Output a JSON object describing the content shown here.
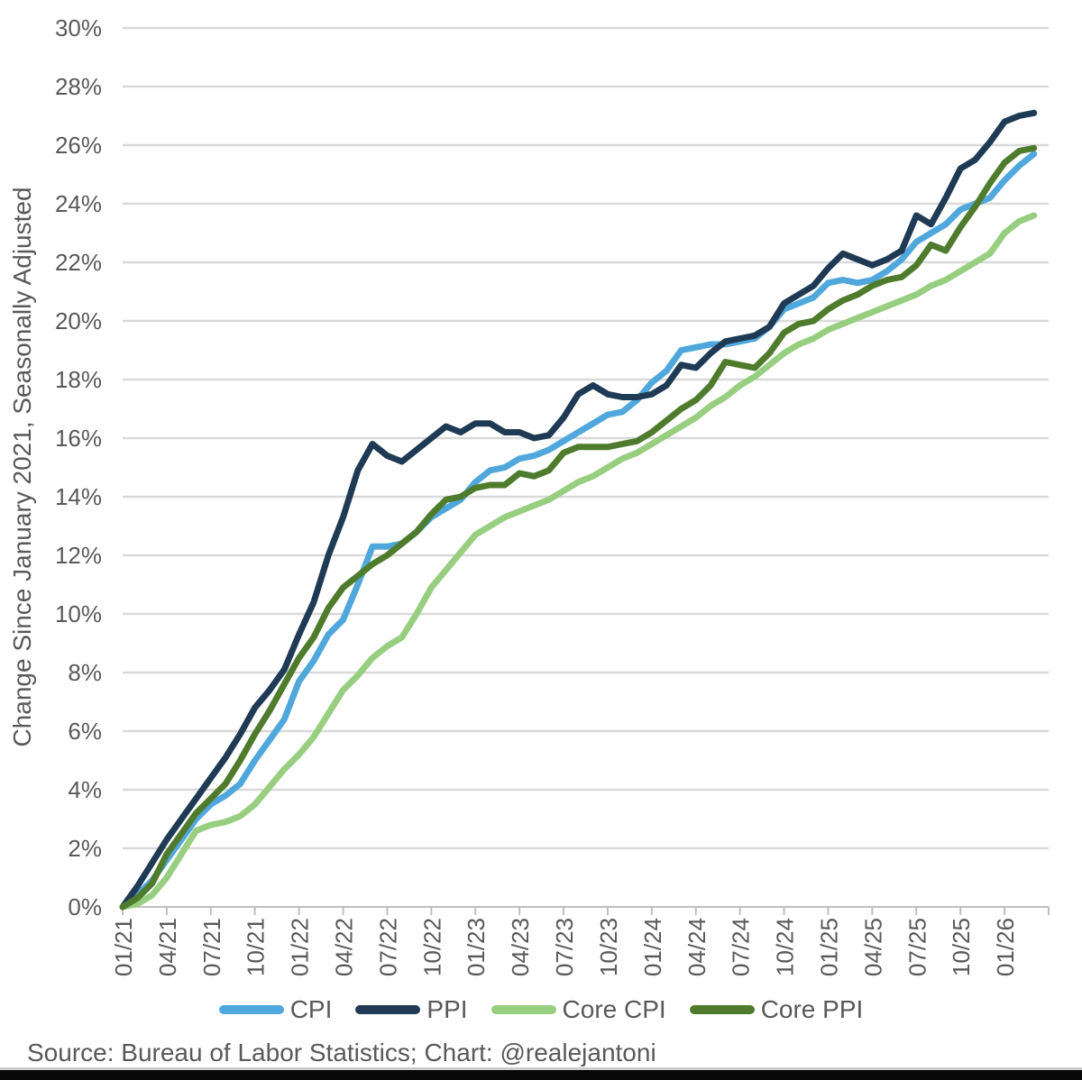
{
  "chart_data": {
    "type": "line",
    "title": "",
    "ylabel": "Change Since January 2021, Seasonally Adjusted",
    "xlabel": "",
    "ylim": [
      0,
      30
    ],
    "y_tick_step_pct": 2,
    "y_tick_labels": [
      "0%",
      "2%",
      "4%",
      "6%",
      "8%",
      "10%",
      "12%",
      "14%",
      "16%",
      "18%",
      "20%",
      "22%",
      "24%",
      "26%",
      "28%",
      "30%"
    ],
    "x_tick_labels": [
      "01/21",
      "04/21",
      "07/21",
      "10/21",
      "01/22",
      "04/22",
      "07/22",
      "10/22",
      "01/23",
      "04/23",
      "07/23",
      "10/23",
      "01/24",
      "04/24",
      "07/24",
      "10/24",
      "01/25",
      "04/25",
      "07/25",
      "10/25",
      "01/26"
    ],
    "x_unit": "month",
    "x_months_per_tick": 3,
    "grid": true,
    "legend_position": "bottom",
    "colors": {
      "grid": "#d9d9d9",
      "axis": "#bfbfbf",
      "text": "#595959"
    },
    "series": [
      {
        "name": "CPI",
        "color": "#4fa7dc",
        "values": [
          0.0,
          0.4,
          0.9,
          1.6,
          2.3,
          3.0,
          3.5,
          3.8,
          4.2,
          5.0,
          5.7,
          6.4,
          7.7,
          8.4,
          9.3,
          9.8,
          11.0,
          12.3,
          12.3,
          12.4,
          12.8,
          13.3,
          13.6,
          13.9,
          14.5,
          14.9,
          15.0,
          15.3,
          15.4,
          15.6,
          15.9,
          16.2,
          16.5,
          16.8,
          16.9,
          17.3,
          17.9,
          18.3,
          19.0,
          19.1,
          19.2,
          19.2,
          19.3,
          19.4,
          19.8,
          20.4,
          20.6,
          20.8,
          21.3,
          21.4,
          21.3,
          21.4,
          21.7,
          22.1,
          22.7,
          23.0,
          23.3,
          23.8,
          24.0,
          24.2,
          24.8,
          25.3,
          25.7
        ]
      },
      {
        "name": "PPI",
        "color": "#1f3a54",
        "values": [
          0.0,
          0.7,
          1.5,
          2.3,
          3.0,
          3.7,
          4.4,
          5.1,
          5.9,
          6.8,
          7.4,
          8.1,
          9.3,
          10.4,
          12.0,
          13.3,
          14.9,
          15.8,
          15.4,
          15.2,
          15.6,
          16.0,
          16.4,
          16.2,
          16.5,
          16.5,
          16.2,
          16.2,
          16.0,
          16.1,
          16.7,
          17.5,
          17.8,
          17.5,
          17.4,
          17.4,
          17.5,
          17.8,
          18.5,
          18.4,
          18.9,
          19.3,
          19.4,
          19.5,
          19.8,
          20.6,
          20.9,
          21.2,
          21.8,
          22.3,
          22.1,
          21.9,
          22.1,
          22.4,
          23.6,
          23.3,
          24.2,
          25.2,
          25.5,
          26.1,
          26.8,
          27.0,
          27.1
        ]
      },
      {
        "name": "Core CPI",
        "color": "#97ce7f",
        "values": [
          0.0,
          0.1,
          0.4,
          1.0,
          1.8,
          2.6,
          2.8,
          2.9,
          3.1,
          3.5,
          4.1,
          4.7,
          5.2,
          5.8,
          6.6,
          7.4,
          7.9,
          8.5,
          8.9,
          9.2,
          10.0,
          10.9,
          11.5,
          12.1,
          12.7,
          13.0,
          13.3,
          13.5,
          13.7,
          13.9,
          14.2,
          14.5,
          14.7,
          15.0,
          15.3,
          15.5,
          15.8,
          16.1,
          16.4,
          16.7,
          17.1,
          17.4,
          17.8,
          18.1,
          18.5,
          18.9,
          19.2,
          19.4,
          19.7,
          19.9,
          20.1,
          20.3,
          20.5,
          20.7,
          20.9,
          21.2,
          21.4,
          21.7,
          22.0,
          22.3,
          23.0,
          23.4,
          23.6
        ]
      },
      {
        "name": "Core PPI",
        "color": "#4e7b2c",
        "values": [
          0.0,
          0.3,
          0.8,
          1.8,
          2.5,
          3.2,
          3.7,
          4.2,
          5.0,
          5.9,
          6.7,
          7.6,
          8.5,
          9.2,
          10.2,
          10.9,
          11.3,
          11.7,
          12.0,
          12.4,
          12.8,
          13.4,
          13.9,
          14.0,
          14.3,
          14.4,
          14.4,
          14.8,
          14.7,
          14.9,
          15.5,
          15.7,
          15.7,
          15.7,
          15.8,
          15.9,
          16.2,
          16.6,
          17.0,
          17.3,
          17.8,
          18.6,
          18.5,
          18.4,
          18.9,
          19.6,
          19.9,
          20.0,
          20.4,
          20.7,
          20.9,
          21.2,
          21.4,
          21.5,
          21.9,
          22.6,
          22.4,
          23.2,
          23.9,
          24.7,
          25.4,
          25.8,
          25.9
        ]
      }
    ]
  },
  "footer": {
    "source_text": "Source: Bureau of Labor Statistics; Chart: @realejantoni"
  }
}
